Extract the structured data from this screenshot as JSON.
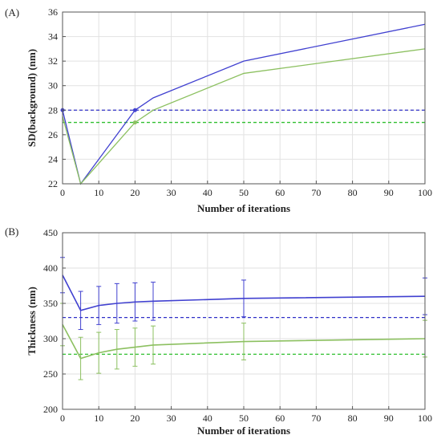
{
  "chart_data": [
    {
      "type": "line",
      "panel_label": "(A)",
      "xlabel": "Number of iterations",
      "ylabel": "SD(background) (nm)",
      "xlim": [
        0,
        100
      ],
      "ylim": [
        22,
        36
      ],
      "xticks": [
        0,
        10,
        20,
        30,
        40,
        50,
        60,
        70,
        80,
        90,
        100
      ],
      "yticks": [
        22,
        24,
        26,
        28,
        30,
        32,
        34,
        36
      ],
      "grid": true,
      "series": [
        {
          "color": "#4040d0",
          "x": [
            0,
            5,
            20,
            25,
            50,
            100
          ],
          "y": [
            28,
            22,
            28,
            29,
            32,
            35
          ],
          "markers_at": [
            0,
            20
          ]
        },
        {
          "color": "#8cc060",
          "x": [
            0,
            5,
            20,
            25,
            50,
            100
          ],
          "y": [
            27.5,
            22,
            27,
            28,
            31,
            33
          ],
          "markers_at": [
            20
          ]
        }
      ],
      "reference_lines": [
        {
          "y": 28,
          "color": "#3030c8",
          "style": "dashed"
        },
        {
          "y": 27,
          "color": "#30c030",
          "style": "dashed"
        }
      ]
    },
    {
      "type": "line",
      "panel_label": "(B)",
      "xlabel": "Number of iterations",
      "ylabel": "Thickness (nm)",
      "xlim": [
        0,
        100
      ],
      "ylim": [
        200,
        450
      ],
      "xticks": [
        0,
        10,
        20,
        30,
        40,
        50,
        60,
        70,
        80,
        90,
        100
      ],
      "yticks": [
        200,
        250,
        300,
        350,
        400,
        450
      ],
      "grid": true,
      "series": [
        {
          "color": "#4040d0",
          "x": [
            0,
            5,
            10,
            15,
            20,
            25,
            50,
            100
          ],
          "y": [
            390,
            340,
            347,
            350,
            352,
            353,
            357,
            360
          ],
          "err": [
            25,
            27,
            27,
            28,
            27,
            27,
            26,
            26
          ]
        },
        {
          "color": "#8cc060",
          "x": [
            0,
            5,
            10,
            15,
            20,
            25,
            50,
            100
          ],
          "y": [
            320,
            272,
            280,
            285,
            288,
            291,
            296,
            300
          ],
          "err": [
            30,
            30,
            29,
            28,
            27,
            27,
            26,
            26
          ]
        }
      ],
      "reference_lines": [
        {
          "y": 330,
          "color": "#3030c8",
          "style": "dashed"
        },
        {
          "y": 278,
          "color": "#30c030",
          "style": "dashed"
        }
      ]
    }
  ]
}
